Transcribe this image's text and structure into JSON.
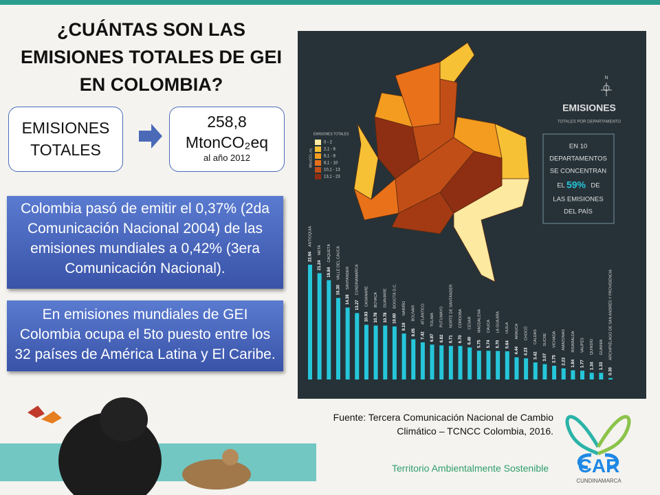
{
  "title": {
    "lines": [
      "¿CUÁNTAS SON LAS",
      "EMISIONES TOTALES DE GEI",
      "EN COLOMBIA?"
    ]
  },
  "total_box": {
    "lines": [
      "EMISIONES",
      "TOTALES"
    ]
  },
  "value_box": {
    "value": "258,8",
    "unit": "MtonCO₂eq",
    "note": "al año 2012"
  },
  "notes": [
    {
      "lines": [
        "Colombia pasó de emitir el 0,37% (2da",
        "Comunicación Nacional 2004) de las",
        "emisiones mundiales a 0,42% (3era",
        "Comunicación Nacional)."
      ]
    },
    {
      "lines": [
        "En emisiones mundiales de GEI",
        "Colombia ocupa el 5to puesto entre los",
        "32 países de América Latina y El Caribe."
      ]
    }
  ],
  "infographic": {
    "heading": "EMISIONES",
    "subheading": "TOTALES POR DEPARTAMENTO",
    "compass": "N",
    "callout_top": [
      "EN 10",
      "DEPARTAMENTOS",
      "SE CONCENTRAN"
    ],
    "callout_mid": {
      "before": "EL",
      "highlight": "59%",
      "after": "DE"
    },
    "callout_end": [
      "LAS EMISIONES",
      "DEL PAÍS"
    ],
    "legend": {
      "title": "EMISIONES TOTALES",
      "unit": "MtonCO₂ eq",
      "ranges": [
        {
          "label": "0 - 2",
          "color": "#fde9a0"
        },
        {
          "label": "2,1 - 6",
          "color": "#f7c136"
        },
        {
          "label": "6,1 - 8",
          "color": "#f39c1f"
        },
        {
          "label": "8,1 - 10",
          "color": "#e8711a"
        },
        {
          "label": "10,1 - 13",
          "color": "#c24e17"
        },
        {
          "label": "13,1 - 23",
          "color": "#8e2e12"
        }
      ]
    }
  },
  "source": {
    "lines": [
      "Fuente: Tercera Comunicación Nacional de Cambio",
      "Climático – TCNCC Colombia, 2016."
    ]
  },
  "slogan": "Territorio Ambientalmente Sostenible",
  "logo": {
    "text": "CAR",
    "subtext": "CUNDINAMARCA"
  },
  "chart_data": {
    "type": "bar",
    "color": "#26c6da",
    "categories": [
      "ANTIOQUIA",
      "META",
      "CAQUETÁ",
      "VALLE DEL CAUCA",
      "SANTANDER",
      "CUNDINAMARCA",
      "CASANARE",
      "BOYACÁ",
      "GUAVIARE",
      "BOGOTÁ D.C.",
      "NARIÑO",
      "BOLÍVAR",
      "ATLÁNTICO",
      "TOLIMA",
      "PUTUMAYO",
      "NORTE DE SANTANDER",
      "CÓRDOBA",
      "CESAR",
      "MAGDALENA",
      "CAUCA",
      "LA GUAJIRA",
      "HUILA",
      "ARAUCA",
      "CHOCÓ",
      "CALDAS",
      "SUCRE",
      "VICHADA",
      "AMAZONAS",
      "RISARALDA",
      "VAUPÉS",
      "QUINDÍO",
      "GUAINÍA",
      "ARCHIPIÉLAGO DE SAN ANDRÉS Y PROVIDENCIA"
    ],
    "values": [
      22.94,
      21.24,
      19.84,
      16.3,
      14.38,
      13.27,
      10.93,
      10.78,
      10.78,
      10.6,
      9.19,
      8.05,
      7.42,
      6.97,
      6.82,
      6.71,
      6.7,
      6.4,
      5.75,
      5.74,
      5.7,
      5.64,
      4.44,
      4.23,
      3.42,
      3.07,
      2.75,
      2.23,
      1.84,
      1.77,
      1.34,
      1.33,
      0.3
    ],
    "value_labels": [
      "22.94",
      "21.24",
      "19.84",
      "16.30",
      "14.38",
      "13.27",
      "10.93",
      "10.78",
      "10.78",
      "10.60",
      "9.19",
      "8.05",
      "7.42",
      "6.97",
      "6.82",
      "6.71",
      "6.70",
      "6.40",
      "5.75",
      "5.74",
      "5.70",
      "5.64",
      "4.44",
      "4.23",
      "3.42",
      "3.07",
      "2.75",
      "2.23",
      "1.84",
      "1.77",
      "1.34",
      "1.33",
      "0.30"
    ]
  }
}
